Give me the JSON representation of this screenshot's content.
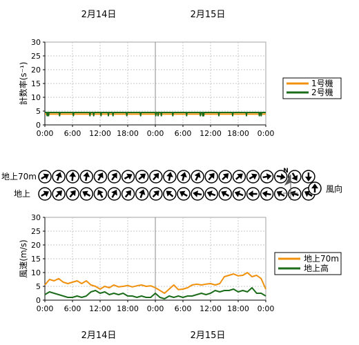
{
  "dates": [
    "2月14日",
    "2月15日"
  ],
  "chart_data": [
    {
      "type": "line",
      "ylabel": "計数率(s⁻¹)",
      "ylim": [
        0,
        30
      ],
      "yticks": [
        0,
        5,
        10,
        15,
        20,
        25,
        30
      ],
      "xlim": [
        0,
        48
      ],
      "xticks": [
        "0:00",
        "6:00",
        "12:00",
        "18:00",
        "0:00",
        "6:00",
        "12:00",
        "18:00",
        "0:00"
      ],
      "grid": true,
      "legend_position": "right",
      "series": [
        {
          "name": "1号機",
          "color": "#f0900a",
          "x": [
            0,
            48
          ],
          "values": [
            3.9,
            3.9
          ]
        },
        {
          "name": "2号機",
          "color": "#1a6b1a",
          "x": [
            0,
            48
          ],
          "values": [
            4.5,
            4.5
          ],
          "dips": [
            0.5,
            0.8,
            3.2,
            6.2,
            9.8,
            10.6,
            12.2,
            13.8,
            14.8,
            17.8,
            20.8,
            24.1,
            24.6,
            25.3,
            27.8,
            30.8,
            33.8,
            34.3,
            34.5,
            37.8,
            40.8,
            43.8,
            46.6,
            47.0
          ]
        }
      ]
    },
    {
      "type": "line",
      "ylabel": "風速(m/s)",
      "ylim": [
        0,
        30
      ],
      "yticks": [
        0,
        5,
        10,
        15,
        20,
        25,
        30
      ],
      "xlim": [
        0,
        48
      ],
      "xticks": [
        "0:00",
        "6:00",
        "12:00",
        "18:00",
        "0:00",
        "6:00",
        "12:00",
        "18:00",
        "0:00"
      ],
      "grid": true,
      "legend_position": "right",
      "series": [
        {
          "name": "地上70m",
          "color": "#f0900a",
          "x": [
            0,
            1,
            2,
            3,
            4,
            5,
            6,
            7,
            8,
            9,
            10,
            11,
            12,
            13,
            14,
            15,
            16,
            17,
            18,
            19,
            20,
            21,
            22,
            23,
            24,
            25,
            26,
            27,
            28,
            29,
            30,
            31,
            32,
            33,
            34,
            35,
            36,
            37,
            38,
            39,
            40,
            41,
            42,
            43,
            44,
            45,
            46,
            47,
            48
          ],
          "values": [
            5.5,
            7.5,
            7.0,
            7.8,
            6.5,
            6.0,
            6.5,
            7.0,
            6.0,
            7.0,
            5.5,
            5.0,
            4.0,
            5.0,
            4.5,
            5.5,
            4.8,
            5.0,
            5.3,
            4.8,
            5.2,
            5.5,
            5.0,
            5.2,
            4.5,
            3.5,
            2.5,
            4.0,
            5.5,
            3.8,
            4.0,
            4.5,
            5.5,
            5.8,
            5.5,
            5.8,
            6.0,
            5.5,
            6.0,
            8.5,
            9.0,
            9.5,
            8.8,
            9.0,
            10.0,
            8.5,
            9.0,
            7.8,
            4.0
          ]
        },
        {
          "name": "地上高",
          "color": "#1a6b1a",
          "x": [
            0,
            1,
            2,
            3,
            4,
            5,
            6,
            7,
            8,
            9,
            10,
            11,
            12,
            13,
            14,
            15,
            16,
            17,
            18,
            19,
            20,
            21,
            22,
            23,
            24,
            25,
            26,
            27,
            28,
            29,
            30,
            31,
            32,
            33,
            34,
            35,
            36,
            37,
            38,
            39,
            40,
            41,
            42,
            43,
            44,
            45,
            46,
            47,
            48
          ],
          "values": [
            2.0,
            3.0,
            2.5,
            2.0,
            1.5,
            1.0,
            1.0,
            1.5,
            1.0,
            1.5,
            3.0,
            3.5,
            2.5,
            3.0,
            2.0,
            2.5,
            2.0,
            2.5,
            1.5,
            1.5,
            1.0,
            1.5,
            1.0,
            1.0,
            2.5,
            1.0,
            0.5,
            1.5,
            1.0,
            1.5,
            1.0,
            1.5,
            1.5,
            2.0,
            2.5,
            2.0,
            2.5,
            3.5,
            3.0,
            3.5,
            3.5,
            4.0,
            3.0,
            3.5,
            3.0,
            4.5,
            2.5,
            2.5,
            1.5
          ]
        }
      ]
    }
  ],
  "wind_rows": [
    {
      "label": "地上70m",
      "dirs": [
        60,
        20,
        5,
        10,
        30,
        35,
        60,
        50,
        40,
        10,
        15,
        25,
        40,
        45,
        50,
        60,
        80,
        100,
        150,
        180
      ]
    },
    {
      "label": "地上",
      "dirs": [
        60,
        45,
        40,
        300,
        330,
        30,
        40,
        20,
        45,
        310,
        300,
        280,
        290,
        300,
        290,
        270,
        280,
        300,
        290,
        300
      ]
    }
  ],
  "north_label": "N",
  "wind_legend_label": "風向"
}
